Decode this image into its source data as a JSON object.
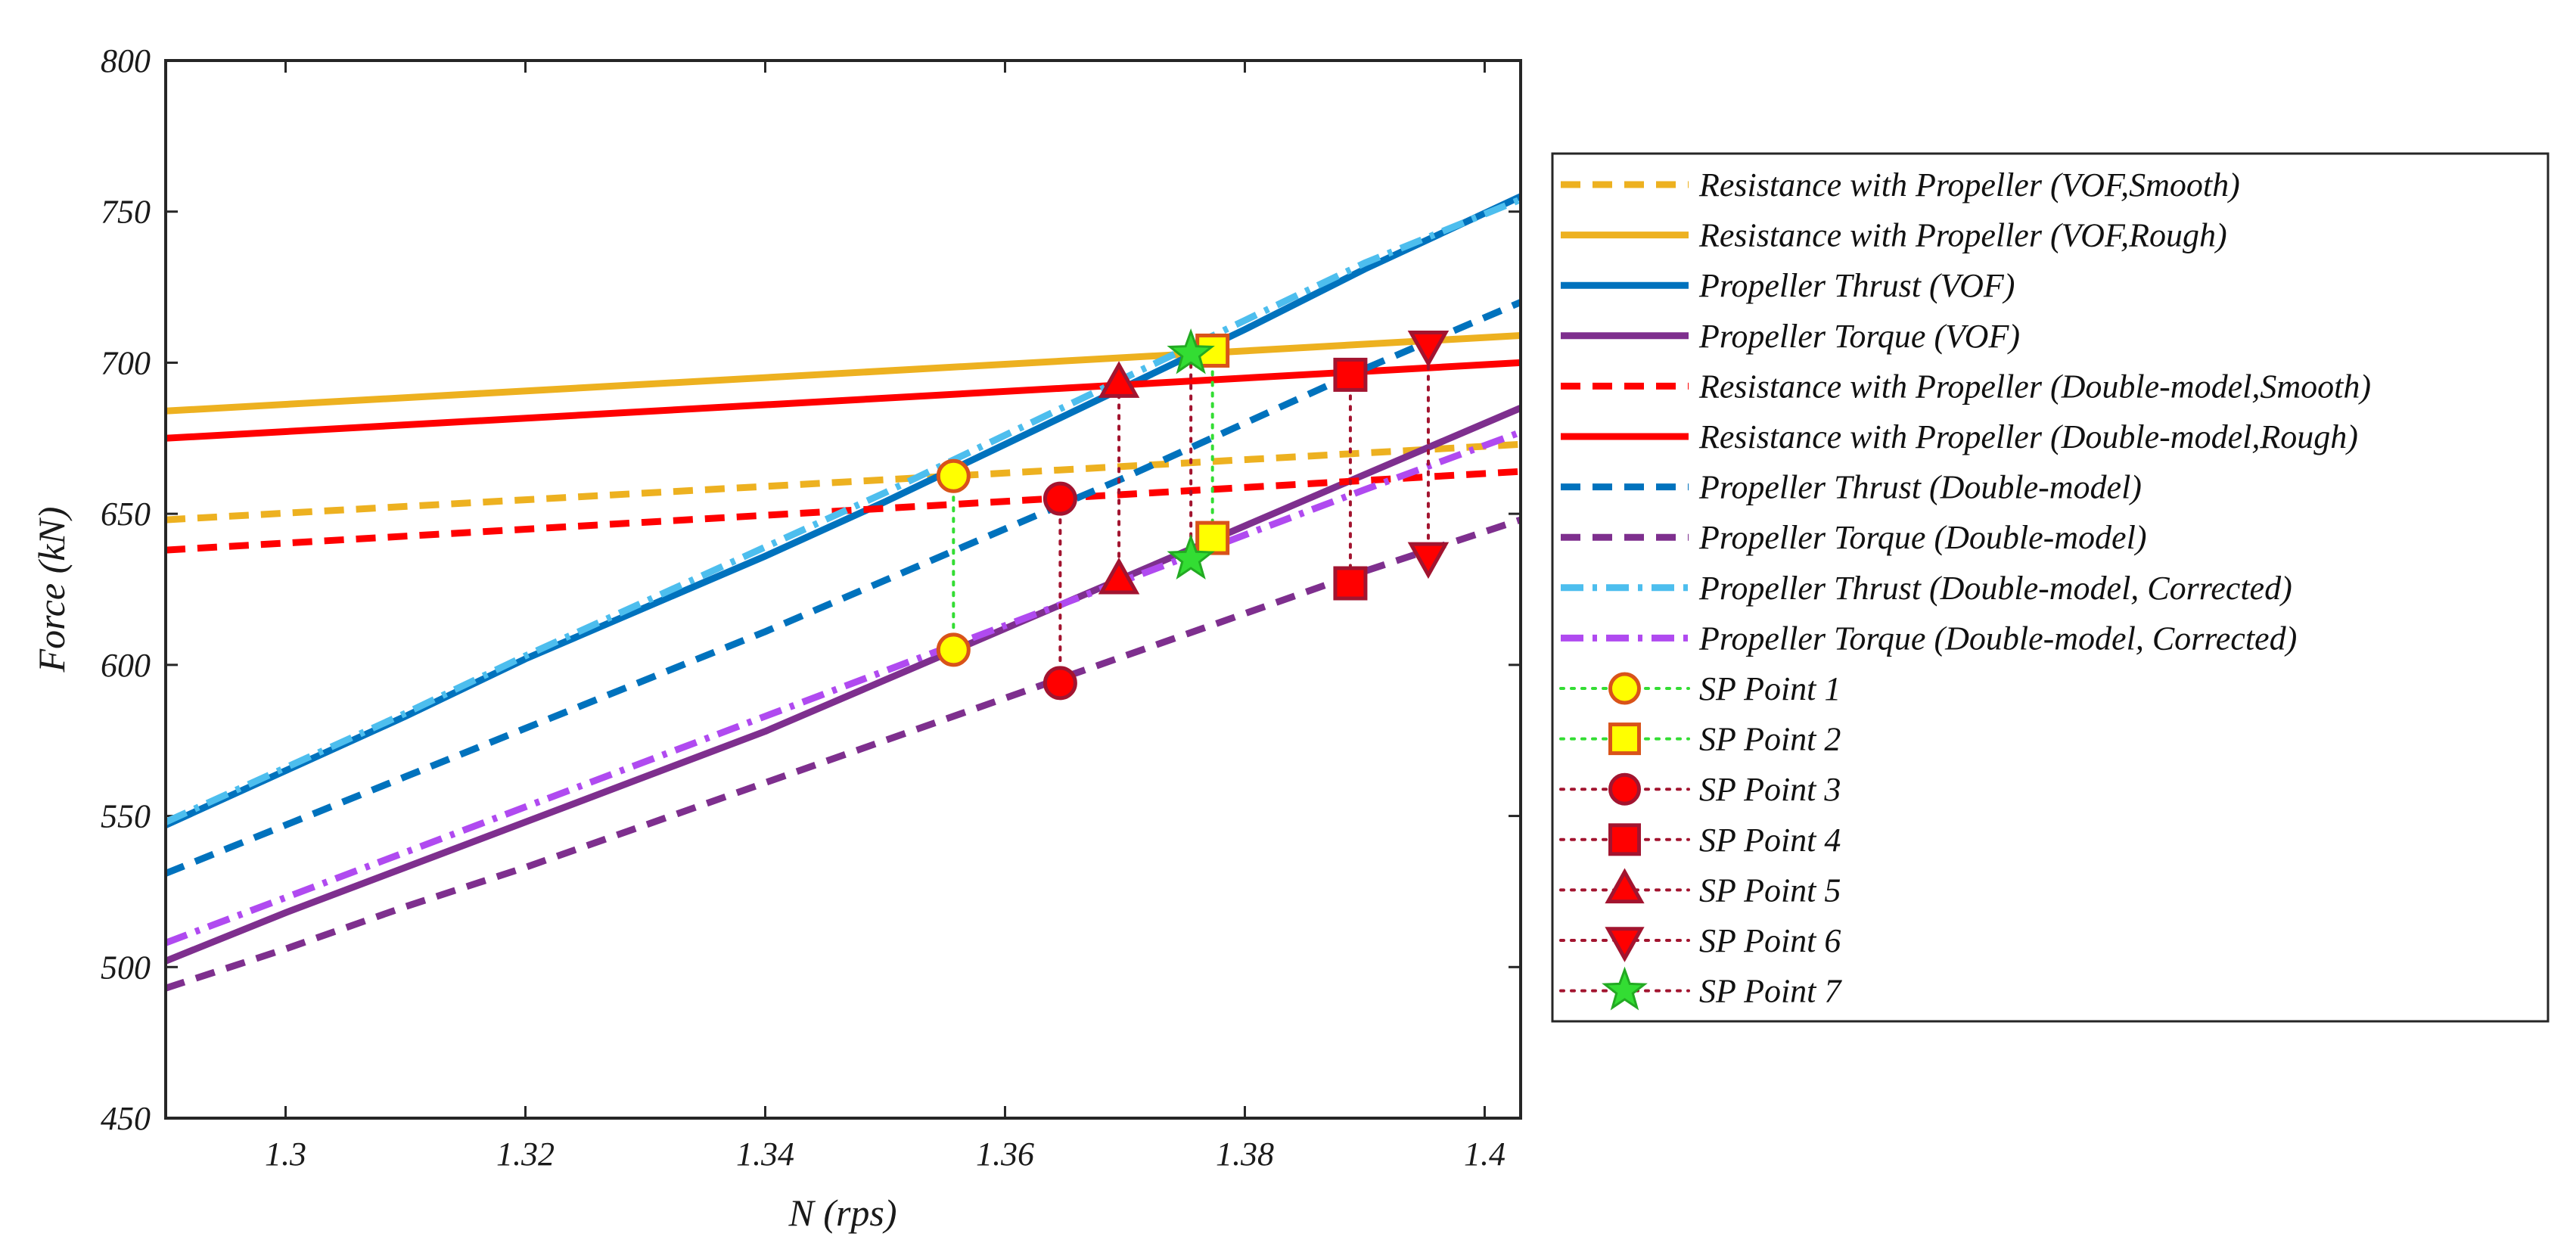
{
  "chart_data": {
    "type": "line",
    "title": "",
    "xlabel": "N (rps)",
    "ylabel": "Force (kN)",
    "xlim": [
      1.29,
      1.403
    ],
    "ylim": [
      450,
      800
    ],
    "xticks": [
      1.3,
      1.32,
      1.34,
      1.36,
      1.38,
      1.4
    ],
    "yticks": [
      450,
      500,
      550,
      600,
      650,
      700,
      750,
      800
    ],
    "xtick_labels": [
      "1.3",
      "1.32",
      "1.34",
      "1.36",
      "1.38",
      "1.4"
    ],
    "ytick_labels": [
      "450",
      "500",
      "550",
      "600",
      "650",
      "700",
      "750",
      "800"
    ],
    "grid": false,
    "legend_position": "outside-right",
    "series": [
      {
        "name": "Resistance with Propeller (VOF,Smooth)",
        "color": "#EDB120",
        "style": "dashed",
        "x": [
          1.29,
          1.403
        ],
        "y": [
          648,
          673
        ]
      },
      {
        "name": "Resistance with Propeller (VOF,Rough)",
        "color": "#EDB120",
        "style": "solid",
        "x": [
          1.29,
          1.403
        ],
        "y": [
          684,
          709
        ]
      },
      {
        "name": "Propeller Thrust (VOF)",
        "color": "#0072BD",
        "style": "solid",
        "x": [
          1.29,
          1.3,
          1.31,
          1.32,
          1.33,
          1.34,
          1.35,
          1.36,
          1.37,
          1.38,
          1.39,
          1.403
        ],
        "y": [
          547,
          565,
          583,
          602,
          619,
          636,
          654,
          673,
          692,
          711,
          731,
          755
        ]
      },
      {
        "name": "Propeller Torque (VOF)",
        "color": "#7E2F8E",
        "style": "solid",
        "x": [
          1.29,
          1.3,
          1.31,
          1.32,
          1.33,
          1.34,
          1.35,
          1.36,
          1.37,
          1.38,
          1.39,
          1.403
        ],
        "y": [
          502,
          518,
          533,
          548,
          563,
          578,
          595,
          612,
          629,
          646,
          663,
          685
        ]
      },
      {
        "name": "Resistance with Propeller (Double-model,Smooth)",
        "color": "#FF0000",
        "style": "dashed",
        "x": [
          1.29,
          1.403
        ],
        "y": [
          638,
          664
        ]
      },
      {
        "name": "Resistance with Propeller (Double-model,Rough)",
        "color": "#FF0000",
        "style": "solid",
        "x": [
          1.29,
          1.403
        ],
        "y": [
          675,
          700
        ]
      },
      {
        "name": "Propeller Thrust (Double-model)",
        "color": "#0072BD",
        "style": "dashed",
        "x": [
          1.29,
          1.3,
          1.31,
          1.32,
          1.33,
          1.34,
          1.35,
          1.36,
          1.37,
          1.38,
          1.39,
          1.403
        ],
        "y": [
          531,
          547,
          563,
          579,
          595,
          611,
          628,
          645,
          662,
          680,
          698,
          720
        ]
      },
      {
        "name": "Propeller Torque (Double-model)",
        "color": "#7E2F8E",
        "style": "dashed",
        "x": [
          1.29,
          1.3,
          1.31,
          1.32,
          1.33,
          1.34,
          1.35,
          1.36,
          1.37,
          1.38,
          1.39,
          1.403
        ],
        "y": [
          493,
          506,
          520,
          533,
          547,
          561,
          575,
          589,
          603,
          617,
          631,
          648
        ]
      },
      {
        "name": "Propeller Thrust (Double-model, Corrected)",
        "color": "#4DBEEE",
        "style": "dashdot",
        "x": [
          1.29,
          1.3,
          1.31,
          1.32,
          1.33,
          1.34,
          1.35,
          1.36,
          1.37,
          1.38,
          1.39,
          1.403
        ],
        "y": [
          548,
          566,
          584,
          603,
          621,
          639,
          657,
          676,
          695,
          714,
          733,
          754
        ]
      },
      {
        "name": "Propeller Torque (Double-model, Corrected)",
        "color": "#B04AF0",
        "style": "dashdot",
        "x": [
          1.29,
          1.3,
          1.31,
          1.32,
          1.33,
          1.34,
          1.35,
          1.36,
          1.37,
          1.38,
          1.39,
          1.403
        ],
        "y": [
          508,
          523,
          538,
          553,
          568,
          583,
          598,
          613,
          628,
          643,
          658,
          677
        ]
      }
    ],
    "sp_points": [
      {
        "name": "SP Point 1",
        "marker": "circle",
        "line_color": "#33DD33",
        "fill": "#FFFF00",
        "edge": "#D95319",
        "x": 1.3557,
        "y_upper": 662.5,
        "y_lower": 605
      },
      {
        "name": "SP Point 2",
        "marker": "square",
        "line_color": "#33DD33",
        "fill": "#FFFF00",
        "edge": "#D95319",
        "x": 1.3773,
        "y_upper": 704,
        "y_lower": 642
      },
      {
        "name": "SP Point 3",
        "marker": "circle",
        "line_color": "#A2142F",
        "fill": "#FF0000",
        "edge": "#A2142F",
        "x": 1.3646,
        "y_upper": 655,
        "y_lower": 594
      },
      {
        "name": "SP Point 4",
        "marker": "square",
        "line_color": "#A2142F",
        "fill": "#FF0000",
        "edge": "#A2142F",
        "x": 1.3888,
        "y_upper": 696,
        "y_lower": 627
      },
      {
        "name": "SP Point 5",
        "marker": "triangle-up",
        "line_color": "#A2142F",
        "fill": "#FF0000",
        "edge": "#A2142F",
        "x": 1.3695,
        "y_upper": 693,
        "y_lower": 628
      },
      {
        "name": "SP Point 6",
        "marker": "triangle-down",
        "line_color": "#A2142F",
        "fill": "#FF0000",
        "edge": "#A2142F",
        "x": 1.3953,
        "y_upper": 706,
        "y_lower": 636
      },
      {
        "name": "SP Point 7",
        "marker": "star",
        "line_color": "#A2142F",
        "fill": "#33DD33",
        "edge": "#22AA22",
        "x": 1.3755,
        "y_upper": 703,
        "y_lower": 635
      }
    ]
  }
}
